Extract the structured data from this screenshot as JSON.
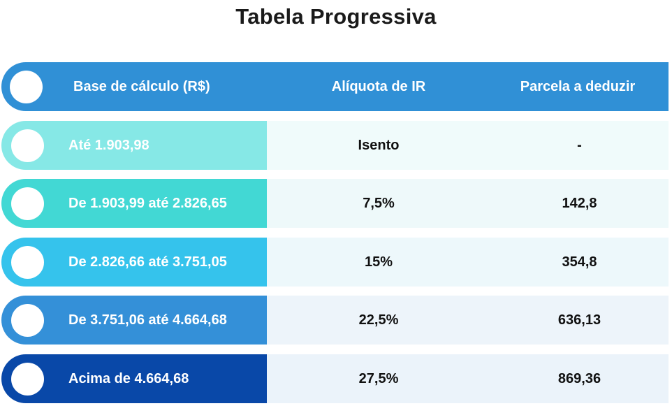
{
  "title": "Tabela Progressiva",
  "header": {
    "col1": "Base de cálculo (R$)",
    "col2": "Alíquota de IR",
    "col3": "Parcela a deduzir"
  },
  "rows": [
    {
      "base": "Até 1.903,98",
      "aliquota": "Isento",
      "parcela": "-",
      "pill_color": "#86e8e6",
      "bg_color": "#f0fbfb"
    },
    {
      "base": "De 1.903,99 até 2.826,65",
      "aliquota": "7,5%",
      "parcela": "142,8",
      "pill_color": "#42d8d4",
      "bg_color": "#eef9fa"
    },
    {
      "base": "De 2.826,66 até 3.751,05",
      "aliquota": "15%",
      "parcela": "354,8",
      "pill_color": "#35c3ec",
      "bg_color": "#edf8fb"
    },
    {
      "base": "De 3.751,06 até 4.664,68",
      "aliquota": "22,5%",
      "parcela": "636,13",
      "pill_color": "#3490d8",
      "bg_color": "#edf4fa"
    },
    {
      "base": "Acima de 4.664,68",
      "aliquota": "27,5%",
      "parcela": "869,36",
      "pill_color": "#0948a8",
      "bg_color": "#ebf3fa"
    }
  ]
}
